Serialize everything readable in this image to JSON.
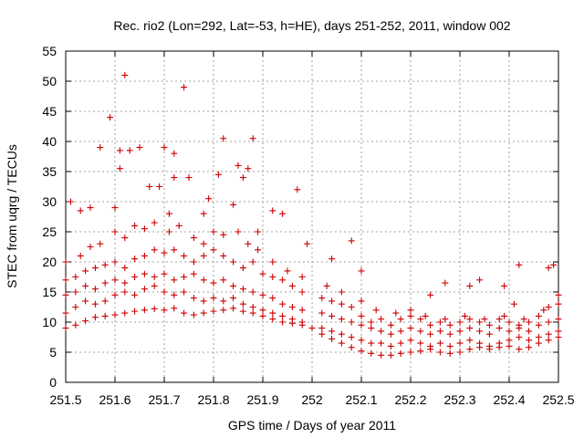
{
  "chart_data": {
    "type": "scatter",
    "title": "Rec. rio2 (Lon=292, Lat=-53, h=HE), days 251-252, 2011, window 002",
    "xlabel": "GPS time / Days of year 2011",
    "ylabel": "STEC from uqrg / TECUs",
    "xlim": [
      251.5,
      252.5
    ],
    "ylim": [
      0,
      55
    ],
    "x_ticks": [
      "251.5",
      "251.6",
      "251.7",
      "251.8",
      "251.9",
      "252",
      "252.1",
      "252.2",
      "252.3",
      "252.4",
      "252.5"
    ],
    "y_ticks": [
      "0",
      "5",
      "10",
      "15",
      "20",
      "25",
      "30",
      "35",
      "40",
      "45",
      "50",
      "55"
    ],
    "grid": true,
    "marker": "+",
    "color": "#cc0000",
    "series": [
      {
        "name": "track-1",
        "points": [
          [
            251.5,
            9.0
          ],
          [
            251.52,
            9.5
          ],
          [
            251.54,
            10.2
          ],
          [
            251.56,
            10.8
          ],
          [
            251.58,
            11.0
          ],
          [
            251.6,
            11.2
          ],
          [
            251.62,
            11.5
          ],
          [
            251.64,
            11.8
          ],
          [
            251.66,
            12.0
          ],
          [
            251.68,
            12.2
          ],
          [
            251.7,
            12.0
          ],
          [
            251.72,
            12.3
          ],
          [
            251.74,
            11.5
          ],
          [
            251.76,
            11.2
          ],
          [
            251.78,
            11.5
          ],
          [
            251.8,
            11.8
          ],
          [
            251.82,
            12.0
          ],
          [
            251.84,
            12.3
          ],
          [
            251.86,
            11.8
          ],
          [
            251.88,
            11.5
          ],
          [
            251.9,
            11.0
          ],
          [
            251.92,
            10.5
          ],
          [
            251.94,
            10.0
          ],
          [
            251.96,
            9.8
          ],
          [
            251.98,
            9.5
          ],
          [
            252.0,
            9.0
          ],
          [
            252.02,
            8.0
          ],
          [
            252.04,
            7.2
          ],
          [
            252.06,
            6.5
          ],
          [
            252.08,
            5.8
          ],
          [
            252.1,
            5.2
          ],
          [
            252.12,
            4.8
          ],
          [
            252.14,
            4.5
          ],
          [
            252.16,
            4.5
          ],
          [
            252.18,
            4.8
          ],
          [
            252.2,
            5.0
          ],
          [
            252.22,
            5.2
          ],
          [
            252.24,
            5.5
          ],
          [
            252.26,
            5.0
          ],
          [
            252.28,
            4.8
          ],
          [
            252.3,
            5.0
          ],
          [
            252.32,
            5.5
          ],
          [
            252.34,
            5.8
          ],
          [
            252.36,
            5.5
          ],
          [
            252.38,
            5.8
          ],
          [
            252.4,
            6.0
          ],
          [
            252.42,
            5.5
          ],
          [
            252.44,
            5.8
          ],
          [
            252.46,
            6.5
          ],
          [
            252.48,
            7.0
          ],
          [
            252.5,
            7.5
          ]
        ]
      },
      {
        "name": "track-2",
        "points": [
          [
            251.5,
            11.5
          ],
          [
            251.52,
            12.5
          ],
          [
            251.54,
            13.5
          ],
          [
            251.56,
            13.0
          ],
          [
            251.58,
            13.5
          ],
          [
            251.6,
            14.5
          ],
          [
            251.62,
            15.0
          ],
          [
            251.64,
            14.5
          ],
          [
            251.66,
            15.5
          ],
          [
            251.68,
            16.0
          ],
          [
            251.7,
            15.0
          ],
          [
            251.72,
            14.5
          ],
          [
            251.74,
            15.0
          ],
          [
            251.76,
            14.0
          ],
          [
            251.78,
            13.5
          ],
          [
            251.8,
            14.0
          ],
          [
            251.82,
            13.5
          ],
          [
            251.84,
            14.0
          ],
          [
            251.86,
            13.0
          ],
          [
            251.88,
            12.5
          ],
          [
            251.9,
            12.0
          ],
          [
            251.92,
            11.5
          ],
          [
            251.94,
            11.0
          ],
          [
            251.96,
            10.5
          ],
          [
            251.98,
            10.0
          ],
          [
            252.02,
            9.0
          ],
          [
            252.04,
            8.5
          ],
          [
            252.06,
            8.0
          ],
          [
            252.08,
            7.5
          ],
          [
            252.1,
            7.0
          ],
          [
            252.12,
            6.5
          ],
          [
            252.14,
            6.5
          ],
          [
            252.16,
            6.0
          ],
          [
            252.18,
            6.5
          ],
          [
            252.2,
            7.0
          ],
          [
            252.22,
            6.5
          ],
          [
            252.24,
            6.0
          ],
          [
            252.26,
            6.5
          ],
          [
            252.28,
            6.0
          ],
          [
            252.3,
            6.5
          ],
          [
            252.32,
            7.0
          ],
          [
            252.34,
            6.5
          ],
          [
            252.36,
            6.0
          ],
          [
            252.38,
            6.5
          ],
          [
            252.4,
            7.0
          ],
          [
            252.42,
            7.5
          ],
          [
            252.44,
            7.0
          ],
          [
            252.46,
            7.5
          ],
          [
            252.48,
            8.0
          ],
          [
            252.5,
            8.5
          ]
        ]
      },
      {
        "name": "track-3",
        "points": [
          [
            251.5,
            14.5
          ],
          [
            251.52,
            15.0
          ],
          [
            251.54,
            16.0
          ],
          [
            251.56,
            15.5
          ],
          [
            251.58,
            16.5
          ],
          [
            251.6,
            17.0
          ],
          [
            251.62,
            16.5
          ],
          [
            251.64,
            17.5
          ],
          [
            251.66,
            18.0
          ],
          [
            251.68,
            17.5
          ],
          [
            251.7,
            18.0
          ],
          [
            251.72,
            17.0
          ],
          [
            251.74,
            17.5
          ],
          [
            251.76,
            18.0
          ],
          [
            251.78,
            17.0
          ],
          [
            251.8,
            16.5
          ],
          [
            251.82,
            17.0
          ],
          [
            251.84,
            16.0
          ],
          [
            251.86,
            15.5
          ],
          [
            251.88,
            15.0
          ],
          [
            251.9,
            14.5
          ],
          [
            251.92,
            14.0
          ],
          [
            251.94,
            13.0
          ],
          [
            251.96,
            12.5
          ],
          [
            251.98,
            12.0
          ],
          [
            252.02,
            11.5
          ],
          [
            252.04,
            11.0
          ],
          [
            252.06,
            10.5
          ],
          [
            252.08,
            10.0
          ],
          [
            252.1,
            9.5
          ],
          [
            252.12,
            9.0
          ],
          [
            252.14,
            8.5
          ],
          [
            252.16,
            8.0
          ],
          [
            252.18,
            8.5
          ],
          [
            252.2,
            9.0
          ],
          [
            252.22,
            8.5
          ],
          [
            252.24,
            8.0
          ],
          [
            252.26,
            8.5
          ],
          [
            252.28,
            8.0
          ],
          [
            252.3,
            8.5
          ],
          [
            252.32,
            9.0
          ],
          [
            252.34,
            8.5
          ],
          [
            252.36,
            8.0
          ],
          [
            252.38,
            9.0
          ],
          [
            252.4,
            8.5
          ],
          [
            252.42,
            9.0
          ],
          [
            252.44,
            8.5
          ],
          [
            252.46,
            9.5
          ],
          [
            252.48,
            10.0
          ],
          [
            252.5,
            10.5
          ]
        ]
      },
      {
        "name": "track-4",
        "points": [
          [
            251.5,
            17.0
          ],
          [
            251.52,
            17.5
          ],
          [
            251.54,
            18.5
          ],
          [
            251.56,
            19.0
          ],
          [
            251.58,
            19.5
          ],
          [
            251.6,
            20.0
          ],
          [
            251.62,
            19.0
          ],
          [
            251.64,
            20.5
          ],
          [
            251.66,
            21.0
          ],
          [
            251.68,
            22.0
          ],
          [
            251.7,
            21.5
          ],
          [
            251.72,
            22.0
          ],
          [
            251.74,
            21.0
          ],
          [
            251.76,
            20.0
          ],
          [
            251.78,
            21.0
          ],
          [
            251.8,
            22.0
          ],
          [
            251.82,
            21.0
          ],
          [
            251.84,
            20.0
          ],
          [
            251.86,
            19.0
          ],
          [
            251.88,
            20.0
          ],
          [
            251.9,
            18.0
          ],
          [
            251.92,
            17.5
          ],
          [
            251.94,
            17.0
          ],
          [
            251.96,
            16.0
          ],
          [
            251.98,
            15.0
          ],
          [
            252.02,
            14.0
          ],
          [
            252.04,
            13.5
          ],
          [
            252.06,
            13.0
          ],
          [
            252.08,
            12.5
          ],
          [
            252.1,
            11.0
          ],
          [
            252.12,
            10.0
          ],
          [
            252.14,
            10.5
          ],
          [
            252.16,
            9.5
          ],
          [
            252.18,
            10.5
          ],
          [
            252.2,
            11.0
          ],
          [
            252.22,
            10.5
          ],
          [
            252.24,
            9.5
          ],
          [
            252.26,
            10.0
          ],
          [
            252.28,
            9.5
          ],
          [
            252.3,
            10.0
          ],
          [
            252.32,
            10.5
          ],
          [
            252.34,
            10.0
          ],
          [
            252.36,
            9.5
          ],
          [
            252.38,
            10.5
          ],
          [
            252.4,
            10.0
          ],
          [
            252.42,
            9.5
          ],
          [
            252.44,
            10.0
          ],
          [
            252.46,
            11.0
          ],
          [
            252.48,
            12.5
          ],
          [
            252.5,
            13.0
          ]
        ]
      },
      {
        "name": "track-5",
        "points": [
          [
            251.5,
            20.0
          ],
          [
            251.53,
            21.0
          ],
          [
            251.55,
            22.5
          ],
          [
            251.57,
            23.0
          ],
          [
            251.6,
            25.0
          ],
          [
            251.62,
            24.0
          ],
          [
            251.64,
            26.0
          ],
          [
            251.66,
            25.5
          ],
          [
            251.68,
            26.5
          ],
          [
            251.71,
            25.0
          ],
          [
            251.73,
            26.0
          ],
          [
            251.76,
            24.0
          ],
          [
            251.78,
            23.0
          ],
          [
            251.8,
            25.0
          ],
          [
            251.82,
            24.5
          ],
          [
            251.85,
            25.0
          ],
          [
            251.87,
            23.0
          ],
          [
            251.89,
            22.0
          ],
          [
            251.92,
            20.0
          ],
          [
            251.95,
            18.5
          ],
          [
            251.98,
            17.5
          ],
          [
            252.03,
            16.0
          ],
          [
            252.06,
            15.0
          ],
          [
            252.1,
            13.5
          ],
          [
            252.13,
            12.0
          ],
          [
            252.17,
            11.5
          ],
          [
            252.2,
            12.0
          ],
          [
            252.23,
            11.0
          ],
          [
            252.27,
            10.5
          ],
          [
            252.31,
            11.0
          ],
          [
            252.35,
            10.5
          ],
          [
            252.39,
            11.0
          ],
          [
            252.43,
            10.5
          ],
          [
            252.47,
            12.0
          ],
          [
            252.5,
            14.5
          ]
        ]
      },
      {
        "name": "outliers",
        "points": [
          [
            251.51,
            30.0
          ],
          [
            251.53,
            28.5
          ],
          [
            251.55,
            29.0
          ],
          [
            251.57,
            39.0
          ],
          [
            251.59,
            44.0
          ],
          [
            251.6,
            29.0
          ],
          [
            251.61,
            38.5
          ],
          [
            251.61,
            35.5
          ],
          [
            251.62,
            51.0
          ],
          [
            251.63,
            38.5
          ],
          [
            251.65,
            39.0
          ],
          [
            251.67,
            32.5
          ],
          [
            251.69,
            32.5
          ],
          [
            251.7,
            39.0
          ],
          [
            251.71,
            28.0
          ],
          [
            251.72,
            38.0
          ],
          [
            251.72,
            34.0
          ],
          [
            251.74,
            49.0
          ],
          [
            251.75,
            34.0
          ],
          [
            251.78,
            28.0
          ],
          [
            251.79,
            30.5
          ],
          [
            251.81,
            34.5
          ],
          [
            251.82,
            40.5
          ],
          [
            251.84,
            29.5
          ],
          [
            251.85,
            36.0
          ],
          [
            251.86,
            34.0
          ],
          [
            251.87,
            35.5
          ],
          [
            251.88,
            40.5
          ],
          [
            251.89,
            25.0
          ],
          [
            251.92,
            28.5
          ],
          [
            251.94,
            28.0
          ],
          [
            251.97,
            32.0
          ],
          [
            251.99,
            23.0
          ],
          [
            252.04,
            20.5
          ],
          [
            252.08,
            23.5
          ],
          [
            252.1,
            18.5
          ],
          [
            252.24,
            14.5
          ],
          [
            252.27,
            16.5
          ],
          [
            252.32,
            16.0
          ],
          [
            252.34,
            17.0
          ],
          [
            252.39,
            16.0
          ],
          [
            252.41,
            13.0
          ],
          [
            252.42,
            19.5
          ],
          [
            252.48,
            19.0
          ],
          [
            252.49,
            19.5
          ]
        ]
      }
    ]
  }
}
